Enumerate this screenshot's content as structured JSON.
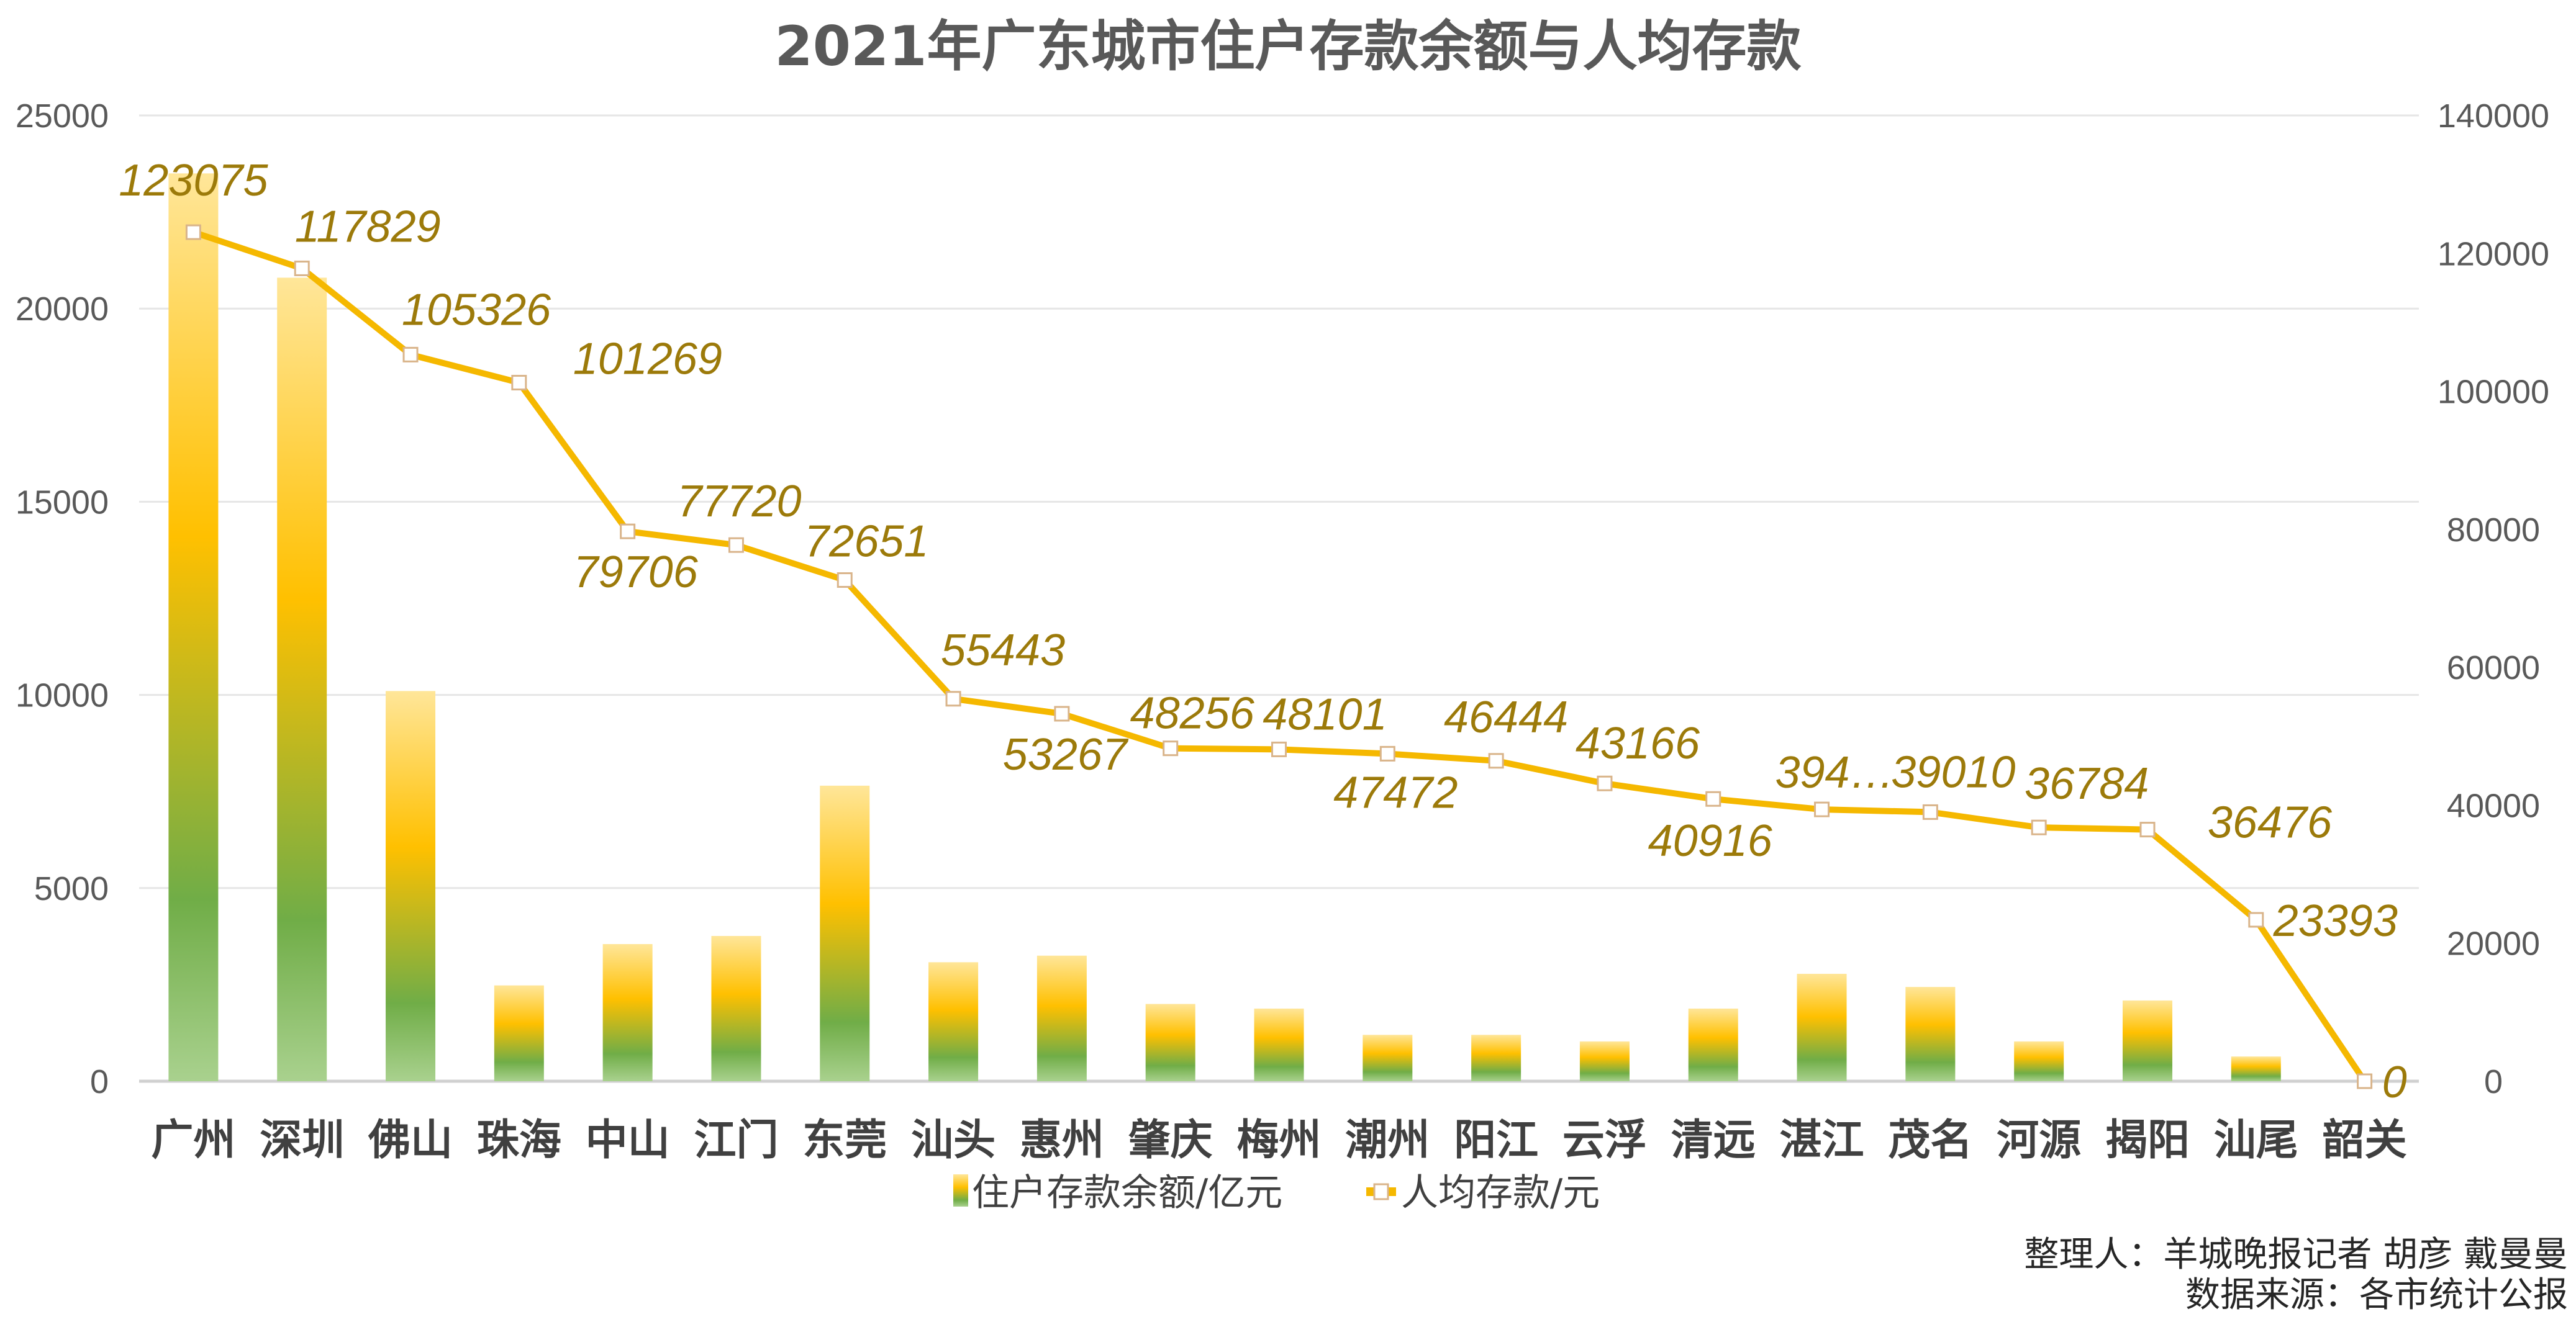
{
  "chart_data": {
    "type": "bar+line",
    "title": "2021年广东城市住户存款余额与人均存款",
    "categories": [
      "广州",
      "深圳",
      "佛山",
      "珠海",
      "中山",
      "江门",
      "东莞",
      "汕头",
      "惠州",
      "肇庆",
      "梅州",
      "潮州",
      "阳江",
      "云浮",
      "清远",
      "湛江",
      "茂名",
      "河源",
      "揭阳",
      "汕尾",
      "韶关"
    ],
    "series": [
      {
        "name": "住户存款余额/亿元",
        "type": "bar",
        "axis": "left",
        "values": [
          23500,
          20800,
          10100,
          2480,
          3550,
          3760,
          7650,
          3080,
          3250,
          2000,
          1880,
          1200,
          1200,
          1030,
          1880,
          2780,
          2440,
          1030,
          2090,
          640,
          0
        ]
      },
      {
        "name": "人均存款/元",
        "type": "line",
        "axis": "right",
        "values": [
          123075,
          117829,
          105326,
          101269,
          79706,
          77720,
          72651,
          55443,
          53267,
          48256,
          48101,
          47472,
          46444,
          43166,
          40916,
          39400,
          39010,
          36784,
          36476,
          23393,
          0
        ],
        "labels": [
          "123075",
          "117829",
          "105326",
          "101269",
          "79706",
          "77720",
          "72651",
          "55443",
          "53267",
          "48256",
          "48101",
          "47472",
          "46444",
          "43166",
          "40916",
          "394…",
          "39010",
          "36784",
          "36476",
          "23393",
          "0"
        ]
      }
    ],
    "ylim_left": [
      0,
      25000
    ],
    "yticks_left": [
      "0",
      "5000",
      "10000",
      "15000",
      "20000",
      "25000"
    ],
    "ylim_right": [
      0,
      140000
    ],
    "yticks_right": [
      "0",
      "20000",
      "40000",
      "60000",
      "80000",
      "100000",
      "120000",
      "140000"
    ],
    "grid": true,
    "legend_position": "bottom",
    "colors": {
      "line": "#f5b800",
      "bar_top": "#ffe699",
      "bar_mid": "#ffc000",
      "bar_green": "#70ad47",
      "bar_bottom": "#a9d18e",
      "label": "#9c7a0a"
    }
  },
  "credits": {
    "line1": "整理人：羊城晚报记者 胡彦 戴曼曼",
    "line2": "数据来源：各市统计公报"
  }
}
